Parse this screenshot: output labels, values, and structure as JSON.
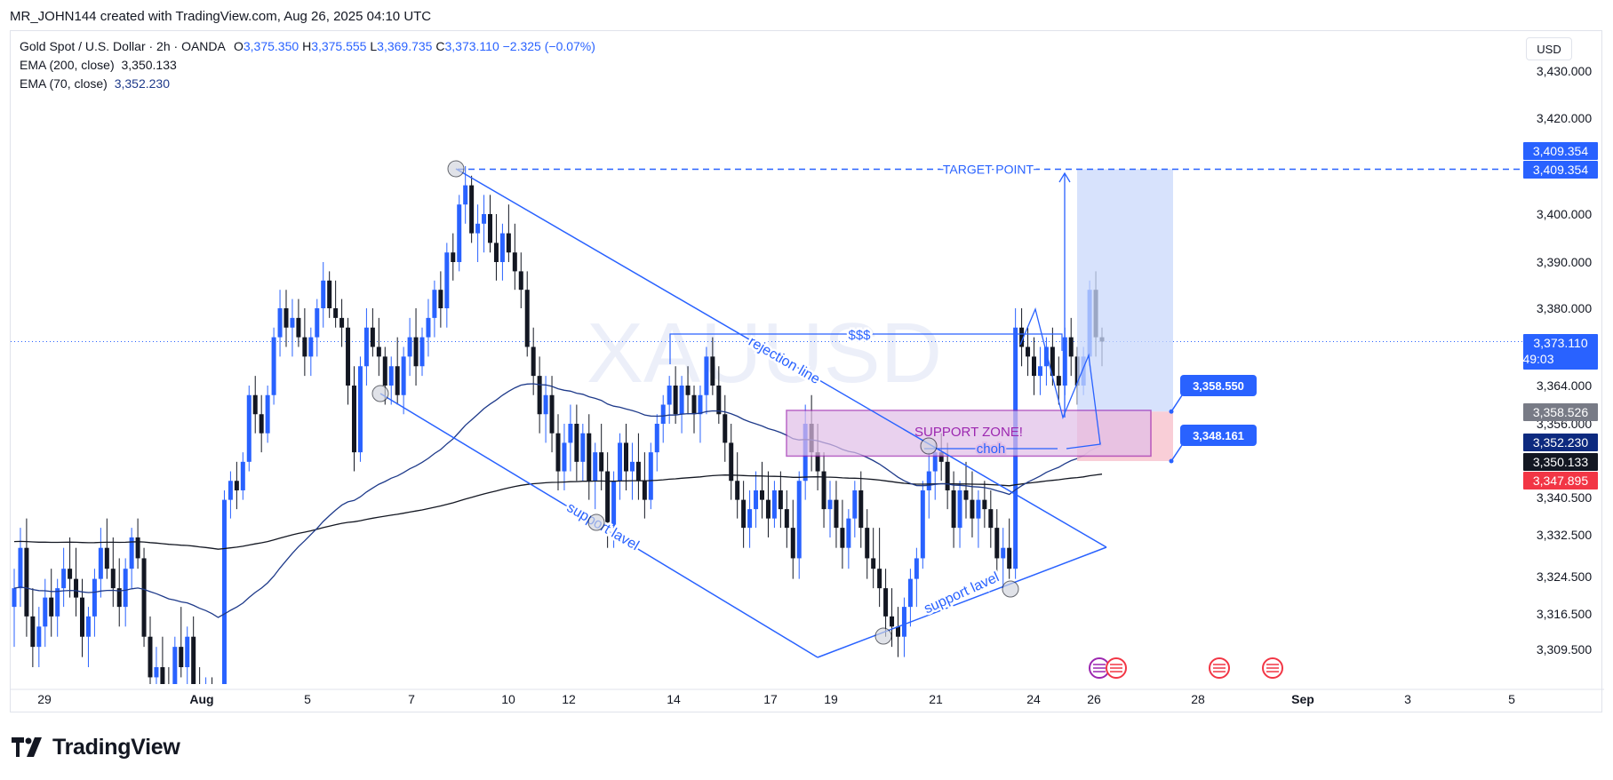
{
  "header": {
    "caption": "MR_JOHN144 created with TradingView.com, Aug 26, 2025 04:10 UTC"
  },
  "legend": {
    "symbol": "Gold Spot / U.S. Dollar · 2h · OANDA",
    "open_label": "O",
    "open": "3,375.350",
    "high_label": "H",
    "high": "3,375.555",
    "low_label": "L",
    "low": "3,369.735",
    "close_label": "C",
    "close": "3,373.110",
    "change": "−2.325 (−0.07%)",
    "ema200_label": "EMA (200, close)",
    "ema200_value": "3,350.133",
    "ema70_label": "EMA (70, close)",
    "ema70_value": "3,352.230"
  },
  "currency_button": "USD",
  "watermark": "XAUUSD",
  "footer": {
    "brand": "TradingView"
  },
  "colors": {
    "up": "#2962ff",
    "down": "#131722",
    "ema200": "#131722",
    "ema70": "#1e3a8a",
    "drawing": "#2962ff",
    "zone_fill": "#e1bee7",
    "zone_border": "#9c27b0",
    "target_fill": "#c9d8fb",
    "stop_fill": "#f8c6d0",
    "price_current": "#2962ff",
    "price_ema70": "#0d2a7f",
    "price_ema200": "#131722",
    "price_red": "#f23645",
    "price_grey": "#787b86"
  },
  "chart_data": {
    "type": "candlestick",
    "instrument": "Gold Spot / U.S. Dollar",
    "timeframe": "2h",
    "y_axis": {
      "ticks": [
        3430,
        3420,
        3400,
        3390,
        3380,
        3364,
        3356,
        3340.5,
        3332.5,
        3324.5,
        3316.5,
        3309.5
      ],
      "tick_labels": [
        "3,430.000",
        "3,420.000",
        "3,400.000",
        "3,390.000",
        "3,380.000",
        "3,364.000",
        "3,356.000",
        "3,340.500",
        "3,332.500",
        "3,324.500",
        "3,316.500",
        "3,309.500"
      ]
    },
    "x_axis": {
      "ticks": [
        {
          "label": "29",
          "bold": false
        },
        {
          "label": "Aug",
          "bold": true
        },
        {
          "label": "5",
          "bold": false
        },
        {
          "label": "7",
          "bold": false
        },
        {
          "label": "10",
          "bold": false
        },
        {
          "label": "12",
          "bold": false
        },
        {
          "label": "14",
          "bold": false
        },
        {
          "label": "17",
          "bold": false
        },
        {
          "label": "19",
          "bold": false
        },
        {
          "label": "21",
          "bold": false
        },
        {
          "label": "24",
          "bold": false
        },
        {
          "label": "26",
          "bold": false
        },
        {
          "label": "28",
          "bold": false
        },
        {
          "label": "Sep",
          "bold": true
        },
        {
          "label": "3",
          "bold": false
        },
        {
          "label": "5",
          "bold": false
        }
      ]
    },
    "price_labels": [
      {
        "value": 3409.354,
        "text": "3,409.354",
        "color": "#2962ff"
      },
      {
        "value": 3409.354,
        "text": "3,409.354",
        "color": "#2962ff",
        "stack": 1
      },
      {
        "value": 3373.11,
        "text": "3,373.110",
        "sub": "49:03",
        "color": "#2962ff"
      },
      {
        "value": 3358.526,
        "text": "3,358.526",
        "color": "#787b86"
      },
      {
        "value": 3352.23,
        "text": "3,352.230",
        "color": "#0d2a7f"
      },
      {
        "value": 3350.133,
        "text": "3,350.133",
        "color": "#131722"
      },
      {
        "value": 3347.895,
        "text": "3,347.895",
        "color": "#f23645"
      }
    ],
    "current_price": 3373.11,
    "target_price": 3409.354,
    "entry_price": 3358.55,
    "stop_price": 3348.161,
    "callouts": [
      {
        "text": "3,358.550",
        "value": 3358.55
      },
      {
        "text": "3,348.161",
        "value": 3348.161
      }
    ],
    "annotations": {
      "target": "TARGET POINT",
      "dollars": "$$$",
      "rejection": "rejection line",
      "support1": "support lavel",
      "support2": "support lavel",
      "zone": "SUPPORT ZONE!",
      "choh": "choh"
    },
    "support_zone": {
      "low": 3349.2,
      "high": 3358.8
    },
    "candles": [
      [
        3318,
        3326,
        3310,
        3322
      ],
      [
        3322,
        3334,
        3318,
        3330
      ],
      [
        3330,
        3336,
        3312,
        3316
      ],
      [
        3316,
        3322,
        3306,
        3310
      ],
      [
        3310,
        3318,
        3306,
        3314
      ],
      [
        3314,
        3324,
        3310,
        3320
      ],
      [
        3320,
        3326,
        3312,
        3316
      ],
      [
        3316,
        3324,
        3312,
        3322
      ],
      [
        3322,
        3330,
        3318,
        3326
      ],
      [
        3326,
        3332,
        3320,
        3324
      ],
      [
        3324,
        3330,
        3316,
        3320
      ],
      [
        3320,
        3324,
        3308,
        3312
      ],
      [
        3312,
        3318,
        3306,
        3316
      ],
      [
        3316,
        3326,
        3312,
        3324
      ],
      [
        3324,
        3334,
        3320,
        3330
      ],
      [
        3330,
        3336,
        3324,
        3326
      ],
      [
        3326,
        3332,
        3318,
        3322
      ],
      [
        3322,
        3328,
        3314,
        3318
      ],
      [
        3318,
        3328,
        3314,
        3326
      ],
      [
        3326,
        3334,
        3322,
        3332
      ],
      [
        3332,
        3336,
        3326,
        3328
      ],
      [
        3328,
        3330,
        3310,
        3312
      ],
      [
        3312,
        3316,
        3300,
        3304
      ],
      [
        3304,
        3310,
        3298,
        3306
      ],
      [
        3306,
        3312,
        3300,
        3302
      ],
      [
        3302,
        3306,
        3296,
        3300
      ],
      [
        3300,
        3312,
        3296,
        3310
      ],
      [
        3310,
        3318,
        3304,
        3306
      ],
      [
        3306,
        3314,
        3300,
        3312
      ],
      [
        3312,
        3316,
        3296,
        3300
      ],
      [
        3300,
        3306,
        3290,
        3296
      ],
      [
        3296,
        3304,
        3292,
        3300
      ],
      [
        3300,
        3304,
        3290,
        3294
      ],
      [
        3294,
        3300,
        3286,
        3290
      ],
      [
        3290,
        3342,
        3288,
        3340
      ],
      [
        3340,
        3346,
        3336,
        3344
      ],
      [
        3344,
        3348,
        3338,
        3342
      ],
      [
        3342,
        3350,
        3340,
        3348
      ],
      [
        3348,
        3364,
        3346,
        3362
      ],
      [
        3362,
        3366,
        3354,
        3358
      ],
      [
        3358,
        3362,
        3350,
        3354
      ],
      [
        3354,
        3364,
        3352,
        3362
      ],
      [
        3362,
        3376,
        3360,
        3374
      ],
      [
        3374,
        3384,
        3370,
        3380
      ],
      [
        3380,
        3384,
        3372,
        3376
      ],
      [
        3376,
        3382,
        3370,
        3378
      ],
      [
        3378,
        3382,
        3372,
        3374
      ],
      [
        3374,
        3380,
        3366,
        3370
      ],
      [
        3370,
        3376,
        3366,
        3374
      ],
      [
        3374,
        3382,
        3370,
        3380
      ],
      [
        3380,
        3390,
        3376,
        3386
      ],
      [
        3386,
        3388,
        3378,
        3380
      ],
      [
        3380,
        3386,
        3376,
        3378
      ],
      [
        3378,
        3382,
        3372,
        3376
      ],
      [
        3376,
        3378,
        3360,
        3364
      ],
      [
        3364,
        3368,
        3346,
        3350
      ],
      [
        3350,
        3370,
        3348,
        3368
      ],
      [
        3368,
        3380,
        3364,
        3376
      ],
      [
        3376,
        3380,
        3370,
        3372
      ],
      [
        3372,
        3378,
        3366,
        3370
      ],
      [
        3370,
        3372,
        3360,
        3364
      ],
      [
        3364,
        3370,
        3360,
        3368
      ],
      [
        3368,
        3374,
        3360,
        3362
      ],
      [
        3362,
        3372,
        3358,
        3370
      ],
      [
        3370,
        3378,
        3366,
        3374
      ],
      [
        3374,
        3380,
        3364,
        3368
      ],
      [
        3368,
        3376,
        3366,
        3374
      ],
      [
        3374,
        3382,
        3370,
        3378
      ],
      [
        3378,
        3386,
        3374,
        3384
      ],
      [
        3384,
        3388,
        3376,
        3380
      ],
      [
        3380,
        3394,
        3376,
        3392
      ],
      [
        3392,
        3396,
        3386,
        3390
      ],
      [
        3390,
        3404,
        3388,
        3402
      ],
      [
        3402,
        3410,
        3398,
        3406
      ],
      [
        3406,
        3408,
        3394,
        3396
      ],
      [
        3396,
        3402,
        3390,
        3398
      ],
      [
        3398,
        3404,
        3392,
        3400
      ],
      [
        3400,
        3404,
        3392,
        3394
      ],
      [
        3394,
        3400,
        3386,
        3390
      ],
      [
        3390,
        3398,
        3386,
        3396
      ],
      [
        3396,
        3402,
        3390,
        3392
      ],
      [
        3392,
        3398,
        3384,
        3388
      ],
      [
        3388,
        3392,
        3380,
        3384
      ],
      [
        3384,
        3388,
        3370,
        3372
      ],
      [
        3372,
        3376,
        3362,
        3366
      ],
      [
        3366,
        3370,
        3354,
        3358
      ],
      [
        3358,
        3366,
        3352,
        3362
      ],
      [
        3362,
        3366,
        3350,
        3354
      ],
      [
        3354,
        3358,
        3342,
        3346
      ],
      [
        3346,
        3356,
        3342,
        3352
      ],
      [
        3352,
        3360,
        3346,
        3356
      ],
      [
        3356,
        3360,
        3344,
        3348
      ],
      [
        3348,
        3356,
        3344,
        3354
      ],
      [
        3354,
        3358,
        3340,
        3344
      ],
      [
        3344,
        3352,
        3338,
        3350
      ],
      [
        3350,
        3356,
        3342,
        3346
      ],
      [
        3346,
        3350,
        3330,
        3334
      ],
      [
        3334,
        3346,
        3330,
        3344
      ],
      [
        3344,
        3354,
        3340,
        3352
      ],
      [
        3352,
        3356,
        3342,
        3346
      ],
      [
        3346,
        3352,
        3340,
        3348
      ],
      [
        3348,
        3354,
        3340,
        3344
      ],
      [
        3344,
        3350,
        3336,
        3340
      ],
      [
        3340,
        3352,
        3338,
        3350
      ],
      [
        3350,
        3358,
        3346,
        3356
      ],
      [
        3356,
        3362,
        3352,
        3360
      ],
      [
        3360,
        3366,
        3356,
        3364
      ],
      [
        3364,
        3368,
        3356,
        3358
      ],
      [
        3358,
        3366,
        3354,
        3364
      ],
      [
        3364,
        3368,
        3358,
        3362
      ],
      [
        3362,
        3364,
        3354,
        3358
      ],
      [
        3358,
        3364,
        3352,
        3362
      ],
      [
        3362,
        3372,
        3358,
        3370
      ],
      [
        3370,
        3374,
        3362,
        3364
      ],
      [
        3364,
        3368,
        3356,
        3358
      ],
      [
        3358,
        3362,
        3348,
        3352
      ],
      [
        3352,
        3356,
        3340,
        3344
      ],
      [
        3344,
        3350,
        3336,
        3340
      ],
      [
        3340,
        3344,
        3330,
        3334
      ],
      [
        3334,
        3342,
        3330,
        3338
      ],
      [
        3338,
        3346,
        3334,
        3342
      ],
      [
        3342,
        3348,
        3336,
        3340
      ],
      [
        3340,
        3346,
        3332,
        3336
      ],
      [
        3336,
        3344,
        3334,
        3342
      ],
      [
        3342,
        3346,
        3334,
        3338
      ],
      [
        3338,
        3342,
        3330,
        3334
      ],
      [
        3334,
        3340,
        3324,
        3328
      ],
      [
        3328,
        3346,
        3324,
        3344
      ],
      [
        3344,
        3360,
        3340,
        3356
      ],
      [
        3356,
        3362,
        3346,
        3350
      ],
      [
        3350,
        3356,
        3342,
        3346
      ],
      [
        3346,
        3350,
        3334,
        3338
      ],
      [
        3338,
        3344,
        3332,
        3340
      ],
      [
        3340,
        3344,
        3330,
        3334
      ],
      [
        3334,
        3340,
        3326,
        3330
      ],
      [
        3330,
        3338,
        3326,
        3336
      ],
      [
        3336,
        3344,
        3332,
        3342
      ],
      [
        3342,
        3346,
        3330,
        3334
      ],
      [
        3334,
        3338,
        3324,
        3328
      ],
      [
        3328,
        3334,
        3322,
        3326
      ],
      [
        3326,
        3334,
        3318,
        3322
      ],
      [
        3322,
        3326,
        3312,
        3316
      ],
      [
        3316,
        3322,
        3310,
        3314
      ],
      [
        3314,
        3318,
        3308,
        3312
      ],
      [
        3312,
        3320,
        3308,
        3318
      ],
      [
        3318,
        3326,
        3314,
        3324
      ],
      [
        3324,
        3330,
        3318,
        3328
      ],
      [
        3328,
        3344,
        3326,
        3342
      ],
      [
        3342,
        3350,
        3336,
        3346
      ],
      [
        3346,
        3352,
        3340,
        3350
      ],
      [
        3350,
        3354,
        3344,
        3348
      ],
      [
        3348,
        3352,
        3338,
        3342
      ],
      [
        3342,
        3346,
        3330,
        3334
      ],
      [
        3334,
        3344,
        3330,
        3342
      ],
      [
        3342,
        3348,
        3336,
        3340
      ],
      [
        3340,
        3346,
        3332,
        3336
      ],
      [
        3336,
        3342,
        3330,
        3340
      ],
      [
        3340,
        3344,
        3334,
        3338
      ],
      [
        3338,
        3342,
        3330,
        3334
      ],
      [
        3334,
        3338,
        3324,
        3328
      ],
      [
        3328,
        3334,
        3322,
        3330
      ],
      [
        3330,
        3336,
        3324,
        3326
      ],
      [
        3326,
        3380,
        3324,
        3376
      ],
      [
        3376,
        3380,
        3368,
        3372
      ],
      [
        3372,
        3376,
        3366,
        3370
      ],
      [
        3370,
        3374,
        3362,
        3366
      ],
      [
        3366,
        3372,
        3362,
        3368
      ],
      [
        3368,
        3374,
        3364,
        3372
      ],
      [
        3372,
        3376,
        3364,
        3366
      ],
      [
        3366,
        3370,
        3360,
        3364
      ],
      [
        3364,
        3376,
        3362,
        3374
      ],
      [
        3374,
        3378,
        3366,
        3370
      ],
      [
        3370,
        3372,
        3360,
        3364
      ],
      [
        3364,
        3372,
        3362,
        3370
      ],
      [
        3370,
        3386,
        3368,
        3384
      ],
      [
        3384,
        3388,
        3370,
        3374
      ],
      [
        3374,
        3376,
        3368,
        3373.11
      ]
    ],
    "series": [
      {
        "name": "EMA (200, close)"
      },
      {
        "name": "EMA (70, close)"
      }
    ]
  }
}
